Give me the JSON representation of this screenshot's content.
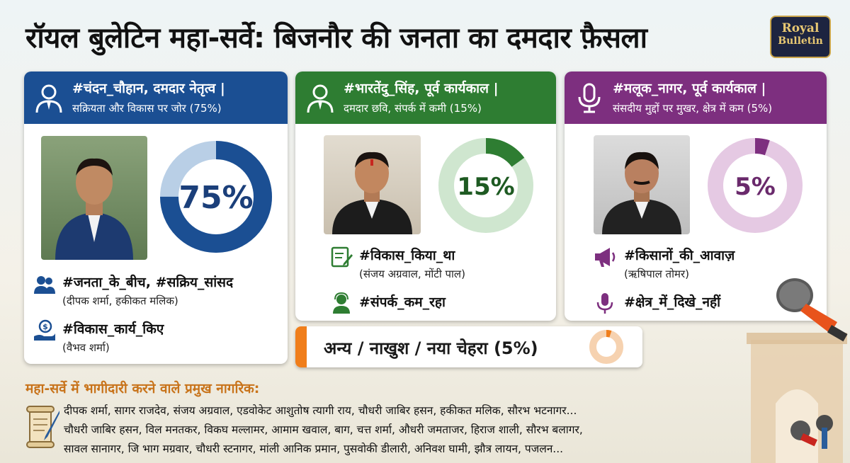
{
  "title": "रॉयल बुलेटिन महा-सर्वे: बिजनौर की जनता का दमदार फ़ैसला",
  "logo": {
    "line1": "Royal",
    "line2": "Bulletin"
  },
  "colors": {
    "blue": "#1b4f93",
    "green": "#2e7d32",
    "purple": "#7d2f7f",
    "orange": "#f07e1b"
  },
  "cards": [
    {
      "header_line1": "#चंदन_चौहान, दमदार नेतृत्व |",
      "header_line2": "सक्रियता और विकास पर जोर (75%)",
      "percent_label": "75%",
      "percent": 75,
      "items": [
        {
          "icon": "people-icon",
          "title": "#जनता_के_बीच, #सक्रिय_सांसद",
          "sub": "(दीपक शर्मा, हकीकत मलिक)"
        },
        {
          "icon": "hand-coin-icon",
          "title": "#विकास_कार्य_किए",
          "sub": "(वैभव शर्मा)"
        }
      ]
    },
    {
      "header_line1": "#भारतेंदु_सिंह, पूर्व कार्यकाल |",
      "header_line2": "दमदार छवि, संपर्क में कमी (15%)",
      "percent_label": "15%",
      "percent": 15,
      "items": [
        {
          "icon": "edit-document-icon",
          "title": "#विकास_किया_था",
          "sub": "(संजय अग्रवाल, मोंटी पाल)"
        },
        {
          "icon": "support-person-icon",
          "title": "#संपर्क_कम_रहा",
          "sub": ""
        }
      ]
    },
    {
      "header_line1": "#मलूक_नागर, पूर्व कार्यकाल |",
      "header_line2": "संसदीय मुद्दों पर मुखर, क्षेत्र में कम (5%)",
      "percent_label": "5%",
      "percent": 5,
      "items": [
        {
          "icon": "megaphone-icon",
          "title": "#किसानों_की_आवाज़",
          "sub": "(ऋषिपाल तोमर)"
        },
        {
          "icon": "microphone-icon",
          "title": "#क्षेत्र_में_दिखे_नहीं",
          "sub": ""
        }
      ]
    }
  ],
  "other": {
    "label": "अन्य / नाखुश / नया चेहरा (5%)",
    "percent": 5
  },
  "participants": {
    "title": "महा-सर्वे में भागीदारी करने वाले प्रमुख नागरिक:",
    "lines": [
      "दीपक शर्मा, सागर राजदेव, संजय अग्रवाल, एडवोकेट आशुतोष त्यागी राय, चौधरी जाबिर हसन, हकीकत मलिक, सौरभ भटनागर...",
      "चौधरी जाबिर हसन, विल मनतकर, विकघ मल्लामर, आमाम खवाल, बाग, चत्त शर्मा, औधरी जमताजर, हिराज शाली, सौरभ बलागर,",
      "सावल सानागर, जि भाग मग्रवार, चौधरी स्टनागर, मांली आनिक प्रमान, पुसवोकी डीलारी, अनिवश घामी, झौत्र लायन, पजलन..."
    ]
  }
}
